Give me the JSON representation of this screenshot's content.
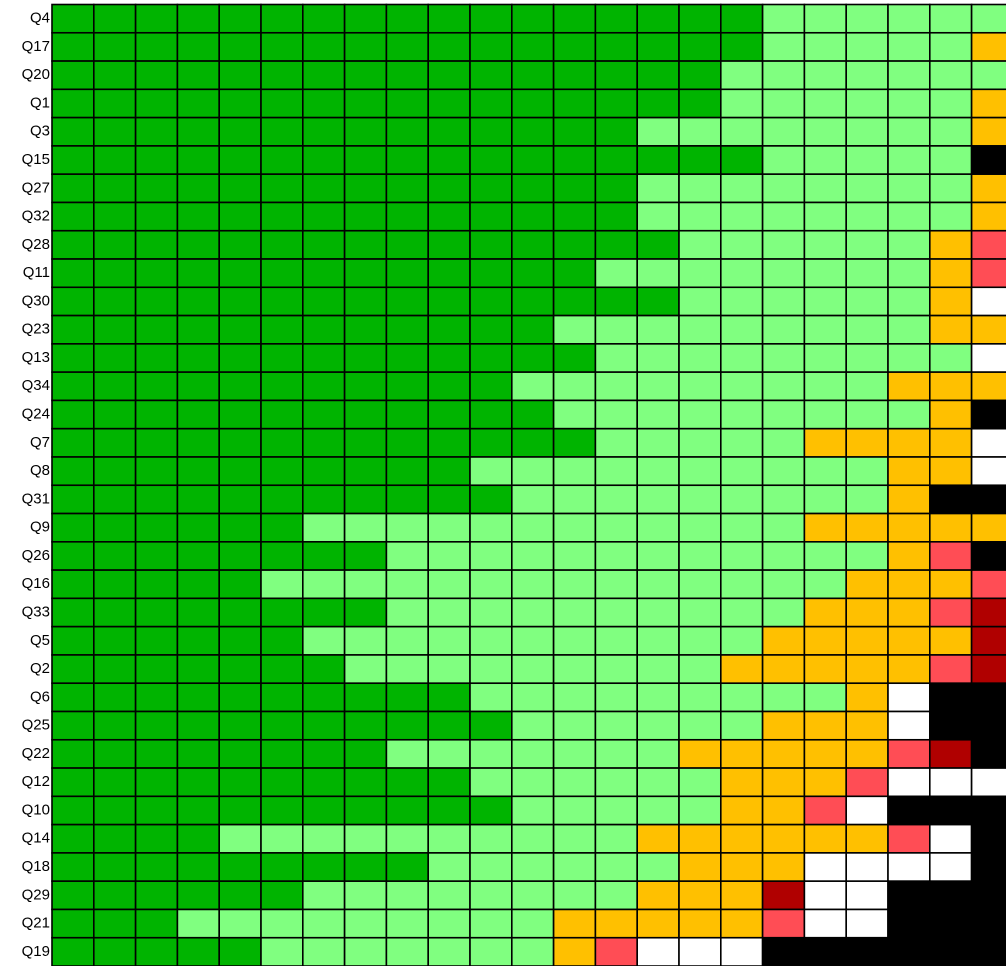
{
  "chart_data": {
    "type": "heatmap",
    "rows": [
      "Q4",
      "Q17",
      "Q20",
      "Q1",
      "Q3",
      "Q15",
      "Q27",
      "Q32",
      "Q28",
      "Q11",
      "Q30",
      "Q23",
      "Q13",
      "Q34",
      "Q24",
      "Q7",
      "Q8",
      "Q31",
      "Q9",
      "Q26",
      "Q16",
      "Q33",
      "Q5",
      "Q2",
      "Q6",
      "Q25",
      "Q22",
      "Q12",
      "Q10",
      "Q14",
      "Q18",
      "Q29",
      "Q21",
      "Q19"
    ],
    "palette": [
      "#00b400",
      "#80ff80",
      "#ffc000",
      "#ff4d55",
      "#b00000",
      "#ffffff",
      "#000000"
    ],
    "cells": [
      [
        0,
        0,
        0,
        0,
        0,
        0,
        0,
        0,
        0,
        0,
        0,
        0,
        0,
        0,
        0,
        0,
        0,
        1,
        1,
        1,
        1,
        1,
        1
      ],
      [
        0,
        0,
        0,
        0,
        0,
        0,
        0,
        0,
        0,
        0,
        0,
        0,
        0,
        0,
        0,
        0,
        0,
        1,
        1,
        1,
        1,
        1,
        2
      ],
      [
        0,
        0,
        0,
        0,
        0,
        0,
        0,
        0,
        0,
        0,
        0,
        0,
        0,
        0,
        0,
        0,
        1,
        1,
        1,
        1,
        1,
        1,
        1
      ],
      [
        0,
        0,
        0,
        0,
        0,
        0,
        0,
        0,
        0,
        0,
        0,
        0,
        0,
        0,
        0,
        0,
        1,
        1,
        1,
        1,
        1,
        1,
        2
      ],
      [
        0,
        0,
        0,
        0,
        0,
        0,
        0,
        0,
        0,
        0,
        0,
        0,
        0,
        0,
        1,
        1,
        1,
        1,
        1,
        1,
        1,
        1,
        2
      ],
      [
        0,
        0,
        0,
        0,
        0,
        0,
        0,
        0,
        0,
        0,
        0,
        0,
        0,
        0,
        0,
        0,
        0,
        1,
        1,
        1,
        1,
        1,
        6
      ],
      [
        0,
        0,
        0,
        0,
        0,
        0,
        0,
        0,
        0,
        0,
        0,
        0,
        0,
        0,
        1,
        1,
        1,
        1,
        1,
        1,
        1,
        1,
        2
      ],
      [
        0,
        0,
        0,
        0,
        0,
        0,
        0,
        0,
        0,
        0,
        0,
        0,
        0,
        0,
        1,
        1,
        1,
        1,
        1,
        1,
        1,
        1,
        2
      ],
      [
        0,
        0,
        0,
        0,
        0,
        0,
        0,
        0,
        0,
        0,
        0,
        0,
        0,
        0,
        0,
        1,
        1,
        1,
        1,
        1,
        1,
        2,
        3
      ],
      [
        0,
        0,
        0,
        0,
        0,
        0,
        0,
        0,
        0,
        0,
        0,
        0,
        0,
        1,
        1,
        1,
        1,
        1,
        1,
        1,
        1,
        2,
        3
      ],
      [
        0,
        0,
        0,
        0,
        0,
        0,
        0,
        0,
        0,
        0,
        0,
        0,
        0,
        0,
        0,
        1,
        1,
        1,
        1,
        1,
        1,
        2,
        5
      ],
      [
        0,
        0,
        0,
        0,
        0,
        0,
        0,
        0,
        0,
        0,
        0,
        0,
        1,
        1,
        1,
        1,
        1,
        1,
        1,
        1,
        1,
        2,
        2
      ],
      [
        0,
        0,
        0,
        0,
        0,
        0,
        0,
        0,
        0,
        0,
        0,
        0,
        0,
        1,
        1,
        1,
        1,
        1,
        1,
        1,
        1,
        1,
        5
      ],
      [
        0,
        0,
        0,
        0,
        0,
        0,
        0,
        0,
        0,
        0,
        0,
        1,
        1,
        1,
        1,
        1,
        1,
        1,
        1,
        1,
        2,
        2,
        2
      ],
      [
        0,
        0,
        0,
        0,
        0,
        0,
        0,
        0,
        0,
        0,
        0,
        0,
        1,
        1,
        1,
        1,
        1,
        1,
        1,
        1,
        1,
        2,
        6
      ],
      [
        0,
        0,
        0,
        0,
        0,
        0,
        0,
        0,
        0,
        0,
        0,
        0,
        0,
        1,
        1,
        1,
        1,
        1,
        2,
        2,
        2,
        2,
        5
      ],
      [
        0,
        0,
        0,
        0,
        0,
        0,
        0,
        0,
        0,
        0,
        1,
        1,
        1,
        1,
        1,
        1,
        1,
        1,
        1,
        1,
        2,
        2,
        5
      ],
      [
        0,
        0,
        0,
        0,
        0,
        0,
        0,
        0,
        0,
        0,
        0,
        1,
        1,
        1,
        1,
        1,
        1,
        1,
        1,
        1,
        2,
        6,
        6
      ],
      [
        0,
        0,
        0,
        0,
        0,
        0,
        1,
        1,
        1,
        1,
        1,
        1,
        1,
        1,
        1,
        1,
        1,
        1,
        2,
        2,
        2,
        2,
        2
      ],
      [
        0,
        0,
        0,
        0,
        0,
        0,
        0,
        0,
        1,
        1,
        1,
        1,
        1,
        1,
        1,
        1,
        1,
        1,
        1,
        1,
        2,
        3,
        6
      ],
      [
        0,
        0,
        0,
        0,
        0,
        1,
        1,
        1,
        1,
        1,
        1,
        1,
        1,
        1,
        1,
        1,
        1,
        1,
        1,
        2,
        2,
        2,
        3
      ],
      [
        0,
        0,
        0,
        0,
        0,
        0,
        0,
        0,
        1,
        1,
        1,
        1,
        1,
        1,
        1,
        1,
        1,
        1,
        2,
        2,
        2,
        3,
        4
      ],
      [
        0,
        0,
        0,
        0,
        0,
        0,
        1,
        1,
        1,
        1,
        1,
        1,
        1,
        1,
        1,
        1,
        1,
        2,
        2,
        2,
        2,
        2,
        4
      ],
      [
        0,
        0,
        0,
        0,
        0,
        0,
        0,
        1,
        1,
        1,
        1,
        1,
        1,
        1,
        1,
        1,
        2,
        2,
        2,
        2,
        2,
        3,
        4
      ],
      [
        0,
        0,
        0,
        0,
        0,
        0,
        0,
        0,
        0,
        0,
        1,
        1,
        1,
        1,
        1,
        1,
        1,
        1,
        1,
        2,
        5,
        6,
        6
      ],
      [
        0,
        0,
        0,
        0,
        0,
        0,
        0,
        0,
        0,
        0,
        0,
        1,
        1,
        1,
        1,
        1,
        1,
        2,
        2,
        2,
        5,
        6,
        6
      ],
      [
        0,
        0,
        0,
        0,
        0,
        0,
        0,
        0,
        1,
        1,
        1,
        1,
        1,
        1,
        1,
        2,
        2,
        2,
        2,
        2,
        3,
        4,
        6
      ],
      [
        0,
        0,
        0,
        0,
        0,
        0,
        0,
        0,
        0,
        0,
        1,
        1,
        1,
        1,
        1,
        1,
        2,
        2,
        2,
        3,
        5,
        5,
        5
      ],
      [
        0,
        0,
        0,
        0,
        0,
        0,
        0,
        0,
        0,
        0,
        0,
        1,
        1,
        1,
        1,
        1,
        2,
        2,
        3,
        5,
        6,
        6,
        6
      ],
      [
        0,
        0,
        0,
        0,
        1,
        1,
        1,
        1,
        1,
        1,
        1,
        1,
        1,
        1,
        2,
        2,
        2,
        2,
        2,
        2,
        3,
        5,
        6
      ],
      [
        0,
        0,
        0,
        0,
        0,
        0,
        0,
        0,
        0,
        1,
        1,
        1,
        1,
        1,
        1,
        2,
        2,
        2,
        5,
        5,
        5,
        5,
        6
      ],
      [
        0,
        0,
        0,
        0,
        0,
        0,
        1,
        1,
        1,
        1,
        1,
        1,
        1,
        1,
        2,
        2,
        2,
        4,
        5,
        5,
        6,
        6,
        6
      ],
      [
        0,
        0,
        0,
        1,
        1,
        1,
        1,
        1,
        1,
        1,
        1,
        1,
        2,
        2,
        2,
        2,
        2,
        3,
        5,
        5,
        6,
        6,
        6
      ],
      [
        0,
        0,
        0,
        0,
        0,
        1,
        1,
        1,
        1,
        1,
        1,
        1,
        2,
        3,
        5,
        5,
        5,
        6,
        6,
        6,
        6,
        6,
        6
      ]
    ]
  }
}
